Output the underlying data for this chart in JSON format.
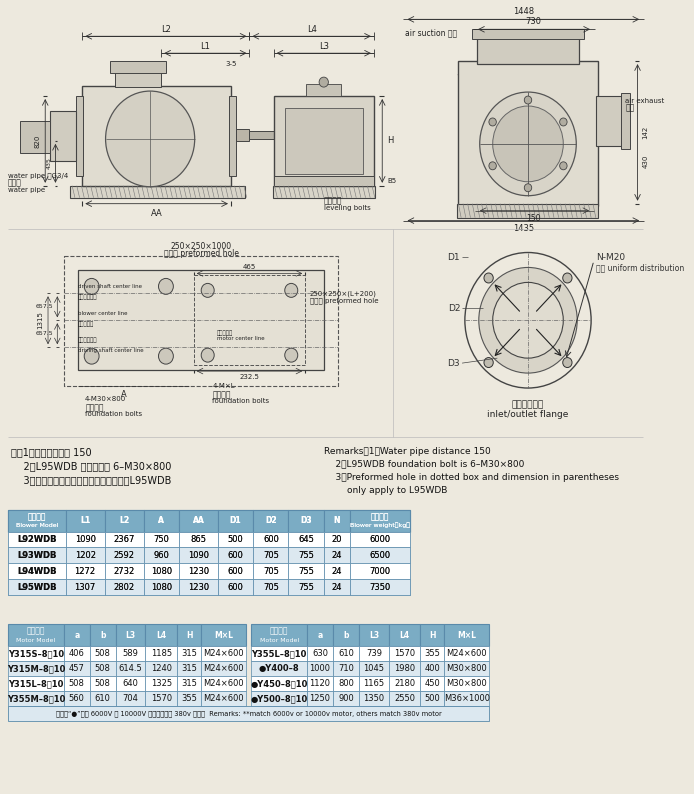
{
  "bg_color": "#ede9de",
  "notes_cn": [
    "注：1、输水管间距为 150",
    "    2、L95WDB 地脚螺栓为 6–M30×800",
    "    3、虚线框内预留孔及括号内尺寸仅用于L95WDB"
  ],
  "notes_en_lines": [
    "Remarks：1、Water pipe distance 150",
    "    2、L95WDB foundation bolt is 6–M30×800",
    "    3、Preformed hole in dotted box and dimension in parentheses",
    "        only apply to L95WDB"
  ],
  "blower_header": [
    "风机型号\nBlower Model",
    "L1",
    "L2",
    "A",
    "AA",
    "D1",
    "D2",
    "D3",
    "N",
    "主机重量\nBlower weight（kg）"
  ],
  "blower_data": [
    [
      "L92WDB",
      "1090",
      "2367",
      "750",
      "865",
      "500",
      "600",
      "645",
      "20",
      "6000"
    ],
    [
      "L93WDB",
      "1202",
      "2592",
      "960",
      "1090",
      "600",
      "705",
      "755",
      "24",
      "6500"
    ],
    [
      "L94WDB",
      "1272",
      "2732",
      "1080",
      "1230",
      "600",
      "705",
      "755",
      "24",
      "7000"
    ],
    [
      "L95WDB",
      "1307",
      "2802",
      "1080",
      "1230",
      "600",
      "705",
      "755",
      "24",
      "7350"
    ]
  ],
  "motor_header": [
    "电机型号\nMotor Model",
    "a",
    "b",
    "L3",
    "L4",
    "H",
    "M×L"
  ],
  "motor_data_left": [
    [
      "Y315S–8，10",
      "406",
      "508",
      "589",
      "1185",
      "315",
      "M24×600"
    ],
    [
      "Y315M–8，10",
      "457",
      "508",
      "614.5",
      "1240",
      "315",
      "M24×600"
    ],
    [
      "Y315L–8，10",
      "508",
      "508",
      "640",
      "1325",
      "315",
      "M24×600"
    ],
    [
      "Y355M–8，10",
      "560",
      "610",
      "704",
      "1570",
      "355",
      "M24×600"
    ]
  ],
  "motor_data_right": [
    [
      "Y355L–8，10",
      "630",
      "610",
      "739",
      "1570",
      "355",
      "M24×600"
    ],
    [
      "●Y400–8",
      "1000",
      "710",
      "1045",
      "1980",
      "400",
      "M30×800"
    ],
    [
      "●Y450–8，10",
      "1120",
      "800",
      "1165",
      "2180",
      "450",
      "M30×800"
    ],
    [
      "●Y500–8，10",
      "1250",
      "900",
      "1350",
      "2550",
      "500",
      "M36×1000"
    ]
  ],
  "motor_footnote": "注：带“●”选用 6000V 或 10000V 电机，其余为 380v 电机。  Remarks: **match 6000v or 10000v motor, others match 380v motor",
  "header_bg": "#7bacc4",
  "row_bg_even": "#ffffff",
  "row_bg_odd": "#dce8f0",
  "table_border": "#5a8aaa",
  "text_dark": "#111111"
}
